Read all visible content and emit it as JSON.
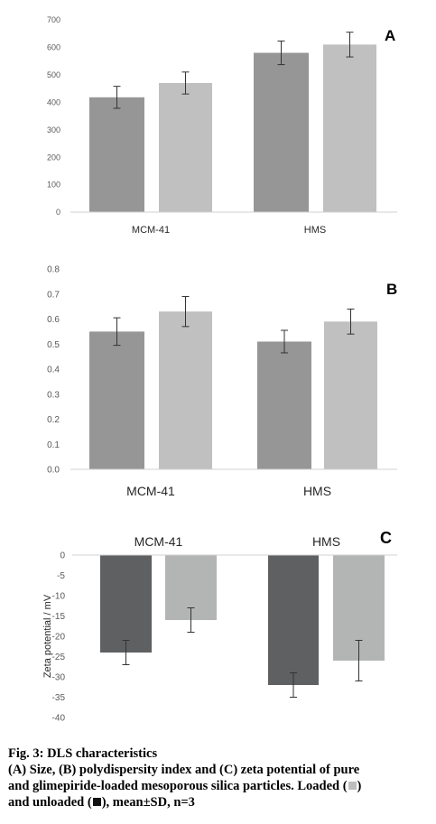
{
  "chart_data": [
    {
      "type": "bar",
      "panel_label": "A",
      "categories": [
        "MCM-41",
        "HMS"
      ],
      "ylim": [
        0,
        700
      ],
      "yticks": [
        0,
        100,
        200,
        300,
        400,
        500,
        600,
        700
      ],
      "ylabel": "",
      "grid": false,
      "series": [
        {
          "color": "#969696",
          "values": [
            418,
            580
          ],
          "errors": [
            40,
            43
          ]
        },
        {
          "color": "#c0c0c0",
          "values": [
            470,
            610
          ],
          "errors": [
            40,
            45
          ]
        }
      ]
    },
    {
      "type": "bar",
      "panel_label": "B",
      "categories": [
        "MCM-41",
        "HMS"
      ],
      "ylim": [
        0,
        0.8
      ],
      "yticks": [
        0,
        0.1,
        0.2,
        0.3,
        0.4,
        0.5,
        0.6,
        0.7,
        0.8
      ],
      "ylabel": "",
      "grid": false,
      "series": [
        {
          "color": "#969696",
          "values": [
            0.55,
            0.51
          ],
          "errors": [
            0.055,
            0.045
          ]
        },
        {
          "color": "#c0c0c0",
          "values": [
            0.63,
            0.59
          ],
          "errors": [
            0.06,
            0.05
          ]
        }
      ]
    },
    {
      "type": "bar",
      "panel_label": "C",
      "categories": [
        "MCM-41",
        "HMS"
      ],
      "ylim": [
        -40,
        0
      ],
      "yticks": [
        0,
        -5,
        -10,
        -15,
        -20,
        -25,
        -30,
        -35,
        -40
      ],
      "ylabel": "Zeta potential / mV",
      "grid": false,
      "series": [
        {
          "color": "#5f6061",
          "values": [
            -24,
            -32
          ],
          "errors": [
            3,
            3
          ]
        },
        {
          "color": "#b3b4b4",
          "values": [
            -16,
            -26
          ],
          "errors": [
            3,
            5
          ]
        }
      ]
    }
  ],
  "caption": {
    "title": "Fig. 3: DLS characteristics",
    "line1": "(A) Size, (B) polydispersity index and (C) zeta potential of pure",
    "line2_a": "and glimepiride-loaded mesoporous silica particles. Loaded (",
    "line2_b": ")",
    "line3_a": "and unloaded (",
    "line3_b": "), mean±SD, n=3",
    "loaded_color": "#bdbdbd",
    "unloaded_color": "#111111"
  }
}
